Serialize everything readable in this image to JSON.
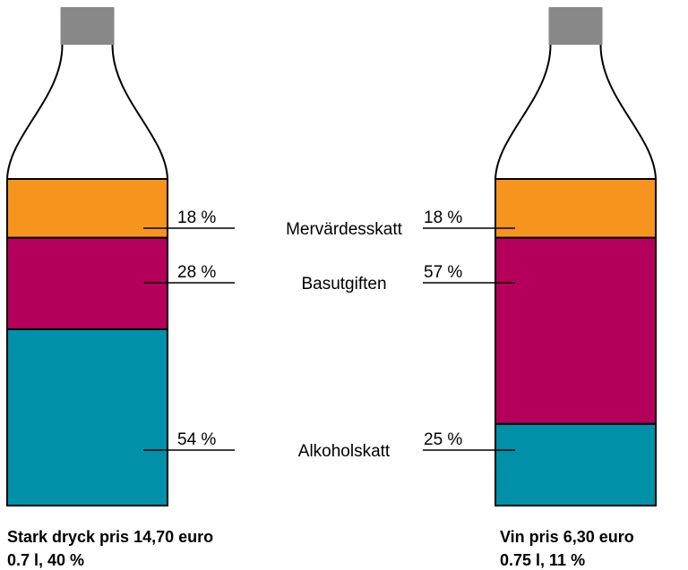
{
  "chart_data": {
    "type": "stacked-bar",
    "categories": [
      "Stark dryck pris 14,70 euro",
      "Vin pris 6,30 euro"
    ],
    "category_details": [
      "0.7 l,  40 %",
      "0.75 l,  11 %"
    ],
    "series": [
      {
        "name": "Mervärdesskatt",
        "color": "#f7941d",
        "values": [
          18,
          18
        ],
        "value_labels": [
          "18 %",
          "18 %"
        ]
      },
      {
        "name": "Basutgiften",
        "color": "#b5005b",
        "values": [
          28,
          57
        ],
        "value_labels": [
          "28 %",
          "57 %"
        ]
      },
      {
        "name": "Alkoholskatt",
        "color": "#0090a8",
        "values": [
          54,
          25
        ],
        "value_labels": [
          "54 %",
          "25 %"
        ]
      }
    ]
  }
}
